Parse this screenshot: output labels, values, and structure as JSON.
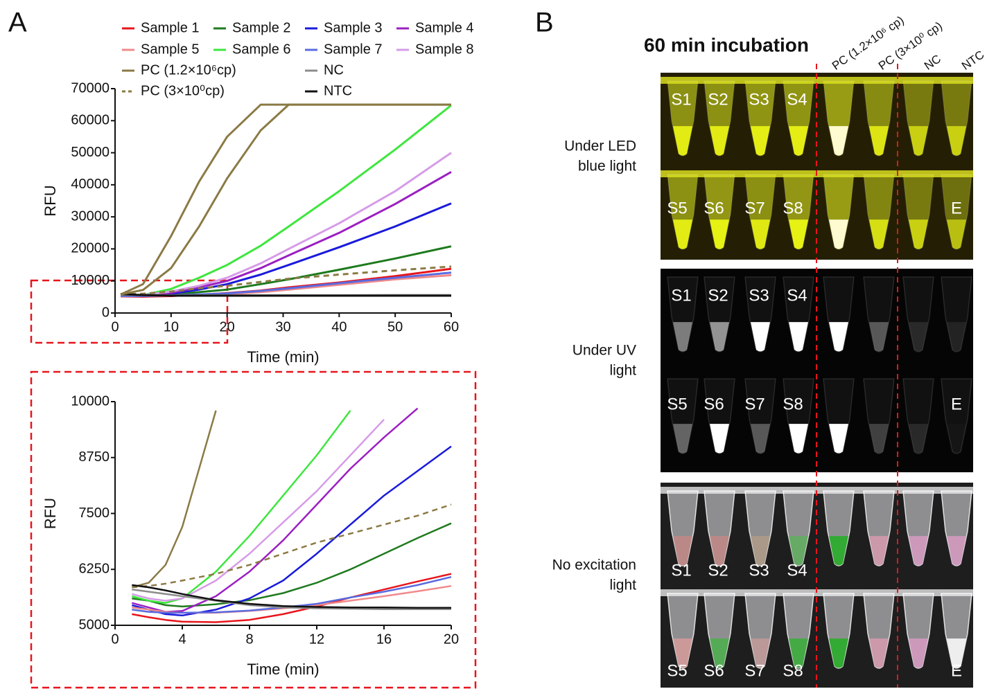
{
  "panel_labels": {
    "a": "A",
    "b": "B"
  },
  "chart_data": [
    {
      "type": "line",
      "xlabel": "Time (min)",
      "ylabel": "RFU",
      "x": [
        1,
        5,
        10,
        15,
        20,
        26,
        31,
        40,
        50,
        60
      ],
      "xlim": [
        0,
        60
      ],
      "xticks": [
        0,
        10,
        20,
        30,
        40,
        50,
        60
      ],
      "ylim": [
        0,
        70000
      ],
      "yticks": [
        0,
        10000,
        20000,
        30000,
        40000,
        50000,
        60000,
        70000
      ],
      "series": [
        {
          "name": "Sample 1",
          "color": "#e8141b",
          "values": [
            5200,
            5100,
            5300,
            5700,
            6200,
            7000,
            8000,
            9500,
            11500,
            13800
          ]
        },
        {
          "name": "Sample 2",
          "color": "#1e7a1e",
          "values": [
            5600,
            5500,
            5800,
            6500,
            7300,
            9000,
            10500,
            13500,
            17000,
            20800
          ]
        },
        {
          "name": "Sample 3",
          "color": "#1a1adb",
          "values": [
            5400,
            5300,
            6000,
            7300,
            9000,
            12000,
            15000,
            20500,
            27000,
            34200
          ]
        },
        {
          "name": "Sample 4",
          "color": "#9b1fc2",
          "values": [
            5500,
            5400,
            6300,
            8000,
            10000,
            14000,
            18000,
            25000,
            34000,
            44000
          ]
        },
        {
          "name": "Sample 5",
          "color": "#f08a8a",
          "values": [
            5300,
            5300,
            5400,
            5600,
            5900,
            6500,
            7300,
            8800,
            10500,
            11800
          ]
        },
        {
          "name": "Sample 6",
          "color": "#3ee63e",
          "values": [
            5600,
            5600,
            7500,
            11000,
            15000,
            21000,
            27000,
            38000,
            51000,
            64800
          ]
        },
        {
          "name": "Sample 7",
          "color": "#5a6be0",
          "values": [
            5300,
            5300,
            5500,
            5800,
            6100,
            6900,
            7700,
            9300,
            11000,
            12600
          ]
        },
        {
          "name": "Sample 8",
          "color": "#d69be8",
          "values": [
            5700,
            5600,
            6700,
            8500,
            11000,
            15500,
            20000,
            28000,
            38000,
            50000
          ]
        },
        {
          "name": "PC (1.2×10⁶cp)",
          "color": "#8b7a45",
          "dash": false,
          "values": [
            5800,
            9000,
            24000,
            41000,
            55000,
            65000,
            65000,
            65000,
            65000,
            65000
          ]
        },
        {
          "name": "PC (3×10⁰cp)",
          "color": "#8b7a45",
          "dash": true,
          "values": [
            5900,
            6000,
            6700,
            7700,
            8500,
            9700,
            10700,
            12000,
            13300,
            14500
          ]
        },
        {
          "name": "NC",
          "color": "#8c8c8c",
          "values": [
            5700,
            5600,
            5500,
            5500,
            5500,
            5500,
            5500,
            5500,
            5600,
            5600
          ]
        },
        {
          "name": "NTC",
          "color": "#111111",
          "values": [
            5900,
            5600,
            5400,
            5400,
            5400,
            5400,
            5400,
            5400,
            5400,
            5400
          ]
        },
        {
          "color": "#8b7a45",
          "values": [
            5800,
            7200,
            14000,
            27000,
            42000,
            57000,
            65000,
            65000,
            65000,
            65000
          ]
        }
      ]
    },
    {
      "type": "line",
      "xlabel": "Time (min)",
      "ylabel": "RFU",
      "x": [
        1,
        2,
        3,
        4,
        6,
        8,
        10,
        12,
        14,
        16,
        18,
        20
      ],
      "xlim": [
        0,
        20
      ],
      "xticks": [
        0,
        4,
        8,
        12,
        16,
        20
      ],
      "ylim": [
        5000,
        10000
      ],
      "yticks": [
        5000,
        6250,
        7500,
        8750,
        10000
      ],
      "series": [
        {
          "color": "#e8141b",
          "values": [
            5250,
            5180,
            5120,
            5080,
            5070,
            5120,
            5250,
            5420,
            5620,
            5800,
            5980,
            6150
          ]
        },
        {
          "color": "#1e7a1e",
          "values": [
            5600,
            5550,
            5450,
            5420,
            5470,
            5560,
            5720,
            5950,
            6250,
            6600,
            6950,
            7280
          ]
        },
        {
          "color": "#1a1adb",
          "values": [
            5450,
            5350,
            5250,
            5220,
            5350,
            5600,
            6000,
            6600,
            7250,
            7900,
            8450,
            9000
          ]
        },
        {
          "color": "#9b1fc2",
          "values": [
            5500,
            5400,
            5300,
            5320,
            5650,
            6200,
            6900,
            7700,
            8500,
            9200,
            9850,
            null
          ]
        },
        {
          "color": "#f08a8a",
          "values": [
            5400,
            5350,
            5300,
            5280,
            5280,
            5320,
            5380,
            5450,
            5550,
            5650,
            5760,
            5880
          ]
        },
        {
          "color": "#3ee63e",
          "values": [
            5650,
            5550,
            5500,
            5600,
            6200,
            7000,
            7900,
            8800,
            9800,
            null,
            null,
            null
          ]
        },
        {
          "color": "#5a6be0",
          "values": [
            5350,
            5300,
            5280,
            5280,
            5290,
            5330,
            5400,
            5480,
            5620,
            5750,
            5900,
            6080
          ]
        },
        {
          "color": "#d69be8",
          "values": [
            5700,
            5600,
            5550,
            5600,
            6000,
            6600,
            7300,
            8000,
            8800,
            9600,
            null,
            null
          ]
        },
        {
          "color": "#8b7a45",
          "dash": false,
          "values": [
            5850,
            5950,
            6350,
            7200,
            9800,
            null,
            null,
            null,
            null,
            null,
            null,
            null
          ]
        },
        {
          "color": "#8b7a45",
          "dash": true,
          "values": [
            5850,
            5880,
            5930,
            6000,
            6150,
            6350,
            6600,
            6850,
            7050,
            7250,
            7450,
            7700
          ]
        },
        {
          "color": "#8c8c8c",
          "values": [
            5800,
            5750,
            5700,
            5650,
            5550,
            5450,
            5400,
            5380,
            5370,
            5360,
            5360,
            5360
          ]
        },
        {
          "color": "#111111",
          "values": [
            5900,
            5850,
            5780,
            5700,
            5560,
            5480,
            5430,
            5410,
            5400,
            5400,
            5390,
            5390
          ]
        }
      ]
    }
  ],
  "photo_panel": {
    "title": "60 min incubation",
    "columns": [
      "PC (1.2×10⁶ cp)",
      "PC (3×10⁰ cp)",
      "NC",
      "NTC"
    ],
    "rows": [
      {
        "label": [
          "Under LED",
          "blue light"
        ],
        "top_labels": [
          "S1",
          "S2",
          "S3",
          "S4"
        ],
        "bottom_labels": [
          "S5",
          "S6",
          "S7",
          "S8",
          "E"
        ]
      },
      {
        "label": [
          "Under UV",
          "light"
        ],
        "top_labels": [
          "S1",
          "S2",
          "S3",
          "S4"
        ],
        "bottom_labels": [
          "S5",
          "S6",
          "S7",
          "S8",
          "E"
        ]
      },
      {
        "label": [
          "No excitation",
          "light"
        ],
        "top_labels": [
          "S1",
          "S2",
          "S3",
          "S4"
        ],
        "bottom_labels": [
          "S5",
          "S6",
          "S7",
          "S8",
          "E"
        ]
      }
    ]
  }
}
